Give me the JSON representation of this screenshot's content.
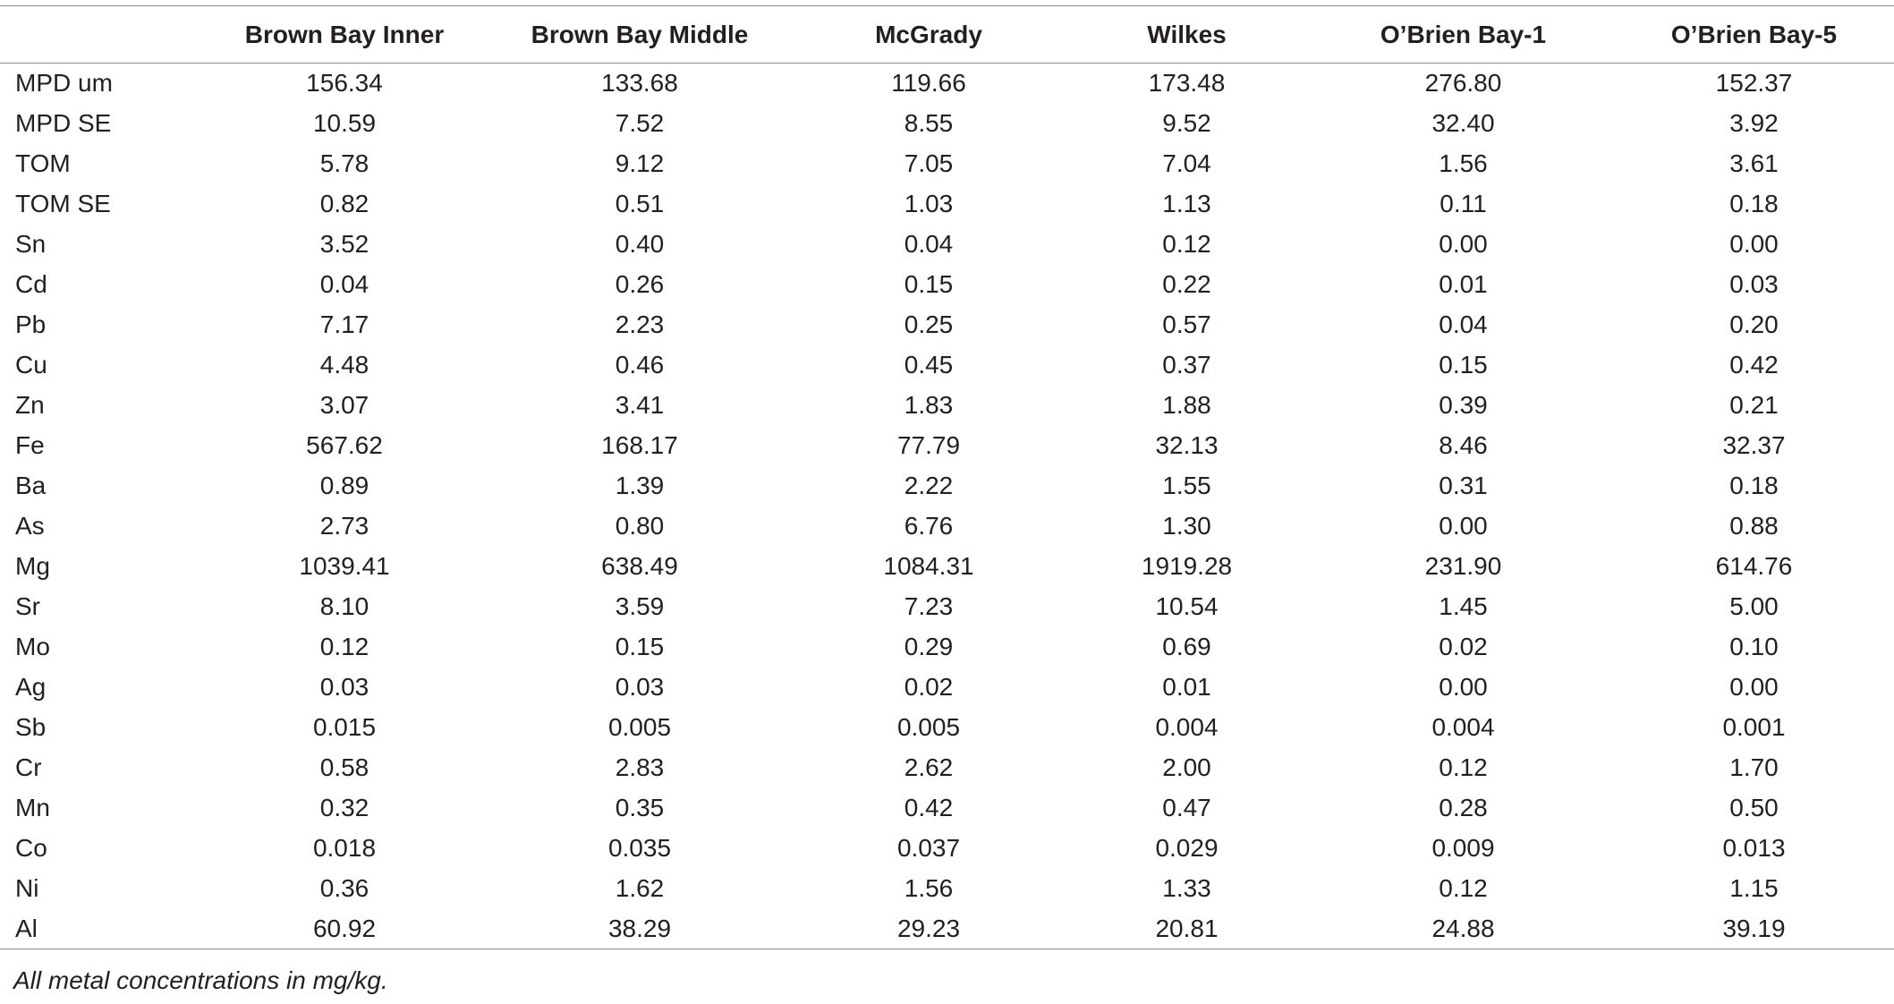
{
  "table": {
    "columns": [
      "",
      "Brown Bay Inner",
      "Brown Bay Middle",
      "McGrady",
      "Wilkes",
      "O’Brien Bay-1",
      "O’Brien Bay-5"
    ],
    "rows": [
      {
        "label": "MPD um",
        "values": [
          "156.34",
          "133.68",
          "119.66",
          "173.48",
          "276.80",
          "152.37"
        ]
      },
      {
        "label": "MPD SE",
        "values": [
          "10.59",
          "7.52",
          "8.55",
          "9.52",
          "32.40",
          "3.92"
        ]
      },
      {
        "label": "TOM",
        "values": [
          "5.78",
          "9.12",
          "7.05",
          "7.04",
          "1.56",
          "3.61"
        ]
      },
      {
        "label": "TOM SE",
        "values": [
          "0.82",
          "0.51",
          "1.03",
          "1.13",
          "0.11",
          "0.18"
        ]
      },
      {
        "label": "Sn",
        "values": [
          "3.52",
          "0.40",
          "0.04",
          "0.12",
          "0.00",
          "0.00"
        ]
      },
      {
        "label": "Cd",
        "values": [
          "0.04",
          "0.26",
          "0.15",
          "0.22",
          "0.01",
          "0.03"
        ]
      },
      {
        "label": "Pb",
        "values": [
          "7.17",
          "2.23",
          "0.25",
          "0.57",
          "0.04",
          "0.20"
        ]
      },
      {
        "label": "Cu",
        "values": [
          "4.48",
          "0.46",
          "0.45",
          "0.37",
          "0.15",
          "0.42"
        ]
      },
      {
        "label": "Zn",
        "values": [
          "3.07",
          "3.41",
          "1.83",
          "1.88",
          "0.39",
          "0.21"
        ]
      },
      {
        "label": "Fe",
        "values": [
          "567.62",
          "168.17",
          "77.79",
          "32.13",
          "8.46",
          "32.37"
        ]
      },
      {
        "label": "Ba",
        "values": [
          "0.89",
          "1.39",
          "2.22",
          "1.55",
          "0.31",
          "0.18"
        ]
      },
      {
        "label": "As",
        "values": [
          "2.73",
          "0.80",
          "6.76",
          "1.30",
          "0.00",
          "0.88"
        ]
      },
      {
        "label": "Mg",
        "values": [
          "1039.41",
          "638.49",
          "1084.31",
          "1919.28",
          "231.90",
          "614.76"
        ]
      },
      {
        "label": "Sr",
        "values": [
          "8.10",
          "3.59",
          "7.23",
          "10.54",
          "1.45",
          "5.00"
        ]
      },
      {
        "label": "Mo",
        "values": [
          "0.12",
          "0.15",
          "0.29",
          "0.69",
          "0.02",
          "0.10"
        ]
      },
      {
        "label": "Ag",
        "values": [
          "0.03",
          "0.03",
          "0.02",
          "0.01",
          "0.00",
          "0.00"
        ]
      },
      {
        "label": "Sb",
        "values": [
          "0.015",
          "0.005",
          "0.005",
          "0.004",
          "0.004",
          "0.001"
        ]
      },
      {
        "label": "Cr",
        "values": [
          "0.58",
          "2.83",
          "2.62",
          "2.00",
          "0.12",
          "1.70"
        ]
      },
      {
        "label": "Mn",
        "values": [
          "0.32",
          "0.35",
          "0.42",
          "0.47",
          "0.28",
          "0.50"
        ]
      },
      {
        "label": "Co",
        "values": [
          "0.018",
          "0.035",
          "0.037",
          "0.029",
          "0.009",
          "0.013"
        ]
      },
      {
        "label": "Ni",
        "values": [
          "0.36",
          "1.62",
          "1.56",
          "1.33",
          "0.12",
          "1.15"
        ]
      },
      {
        "label": "Al",
        "values": [
          "60.92",
          "38.29",
          "29.23",
          "20.81",
          "24.88",
          "39.19"
        ]
      }
    ]
  },
  "footnote": "All metal concentrations in mg/kg.",
  "colors": {
    "text": "#231f20",
    "rule": "#8c8c8c",
    "background": "#ffffff"
  }
}
